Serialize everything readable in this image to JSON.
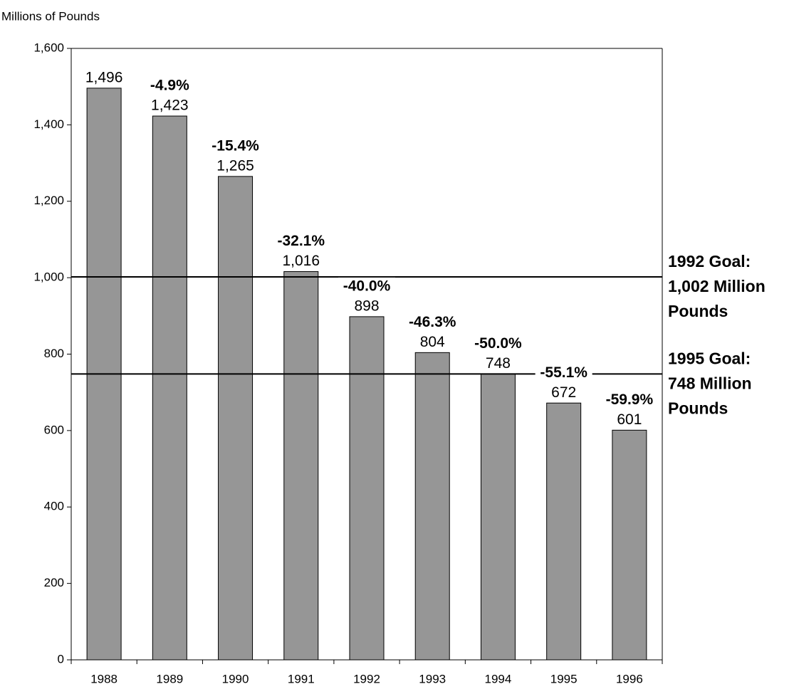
{
  "chart_data": {
    "type": "bar",
    "y_axis_label": "Millions of Pounds",
    "categories": [
      "1988",
      "1989",
      "1990",
      "1991",
      "1992",
      "1993",
      "1994",
      "1995",
      "1996"
    ],
    "values": [
      1496,
      1423,
      1265,
      1016,
      898,
      804,
      748,
      672,
      601
    ],
    "value_labels": [
      "1,496",
      "1,423",
      "1,265",
      "1,016",
      "898",
      "804",
      "748",
      "672",
      "601"
    ],
    "change_labels": [
      null,
      "-4.9%",
      "-15.4%",
      "-32.1%",
      "-40.0%",
      "-46.3%",
      "-50.0%",
      "-55.1%",
      "-59.9%"
    ],
    "color": "#969696",
    "ylim": [
      0,
      1600
    ],
    "yticks": [
      0,
      200,
      400,
      600,
      800,
      {
        "value": 1000,
        "label": "1,000"
      },
      {
        "value": 1200,
        "label": "1,200"
      },
      {
        "value": 1400,
        "label": "1,400"
      },
      {
        "value": 1600,
        "label": "1,600"
      }
    ],
    "reference_lines": [
      {
        "value": 1002,
        "label": [
          "1992 Goal:",
          "1,002 Million",
          "Pounds"
        ]
      },
      {
        "value": 748,
        "label": [
          "1995 Goal:",
          "748 Million",
          "Pounds"
        ]
      }
    ]
  }
}
